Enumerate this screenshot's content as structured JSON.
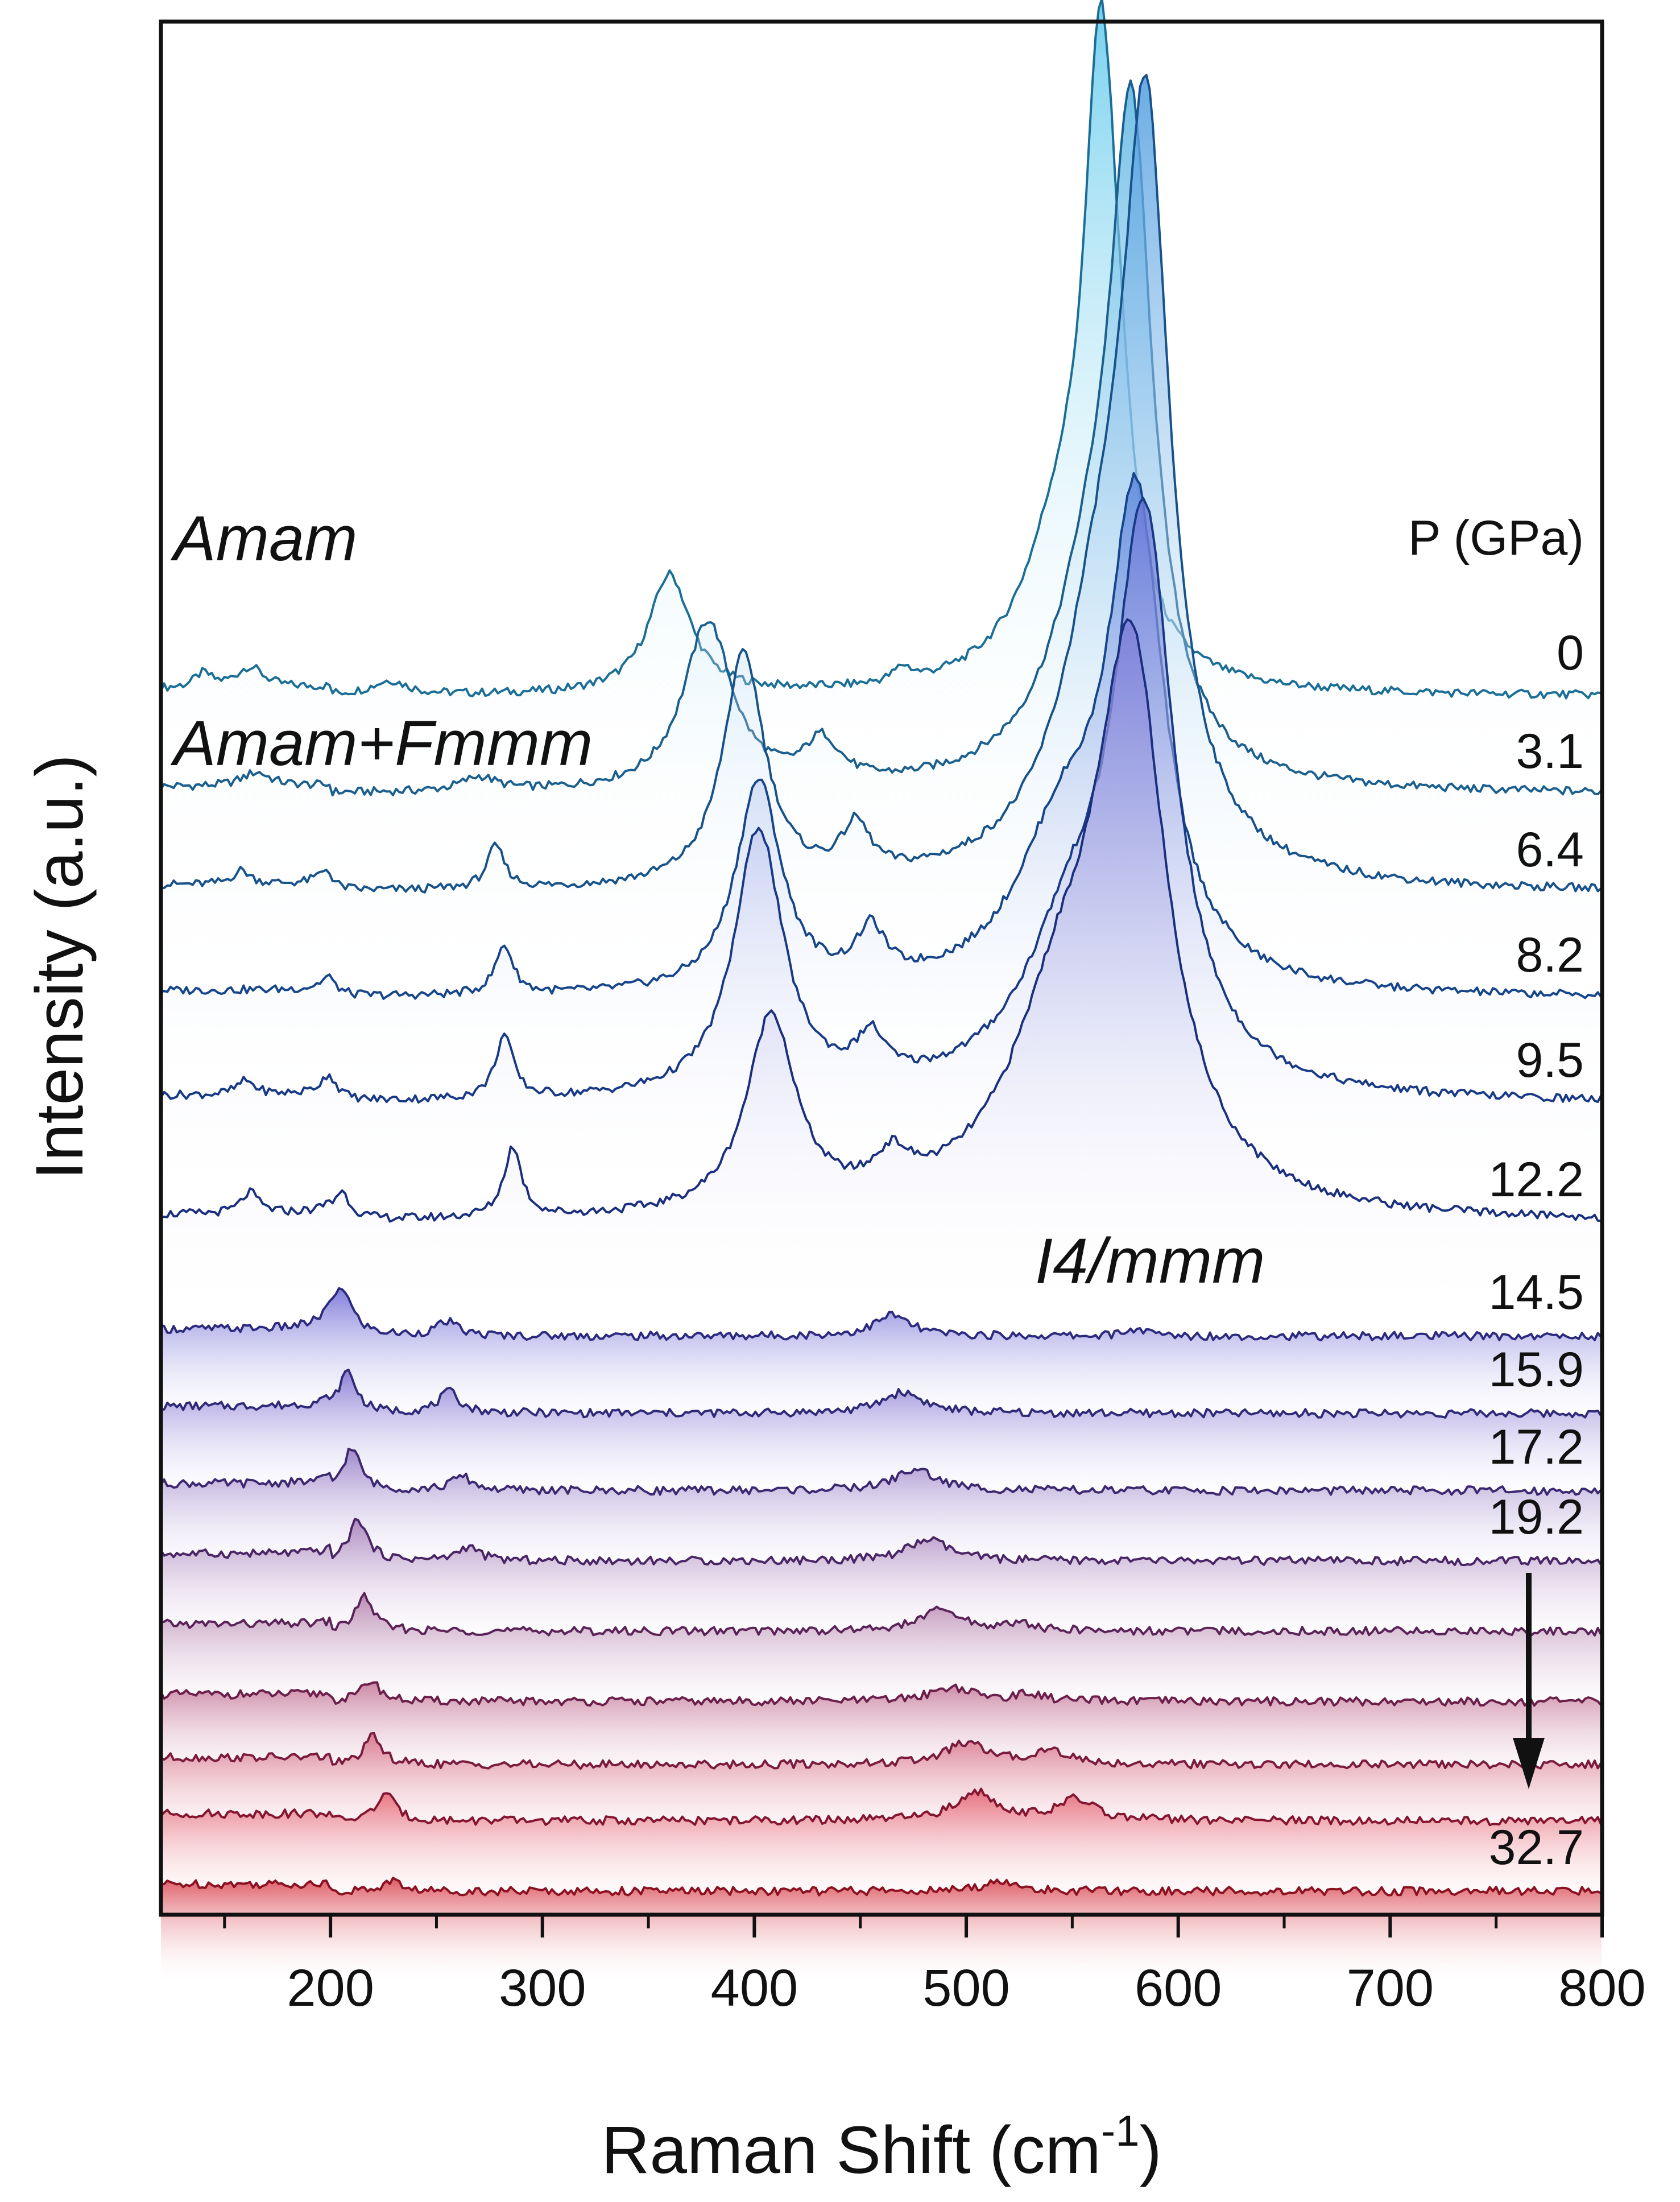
{
  "chart_data": {
    "type": "line",
    "title": "",
    "xlabel": "Raman Shift (cm",
    "xlabel_sup": "-1",
    "xlabel_close": ")",
    "ylabel": "Intensity (a.u.)",
    "xlim": [
      120,
      800
    ],
    "xticks": [
      200,
      300,
      400,
      500,
      600,
      700,
      800
    ],
    "xminor_ticks": [
      150,
      250,
      350,
      450,
      550,
      650,
      750
    ],
    "pressure_header": "P (GPa)",
    "phase_labels": [
      "Amam",
      "Amam+Fmmm",
      "I4/mmm"
    ],
    "colors": {
      "low_pressure": "#1c6a94",
      "mid_pressure": "#1f2f80",
      "high_pressure": "#8b1020"
    },
    "series": [
      {
        "name": "0",
        "label": "0",
        "baseline": 1.0,
        "color": "#1b6e96",
        "fill": "#5ec8ec",
        "peaks": [
          [
            140,
            0.02,
            5
          ],
          [
            162,
            0.03,
            8
          ],
          [
            228,
            0.02,
            10
          ],
          [
            360,
            0.17,
            12
          ],
          [
            470,
            0.02,
            5
          ],
          [
            545,
            0.2,
            22
          ],
          [
            563,
            0.72,
            9
          ],
          [
            570,
            0.22,
            10
          ]
        ]
      },
      {
        "name": "3.1",
        "label": "3.1",
        "baseline": 0.86,
        "color": "#1a5f8e",
        "fill": "#58b3e3",
        "peaks": [
          [
            165,
            0.02,
            8
          ],
          [
            270,
            0.02,
            10
          ],
          [
            378,
            0.24,
            14
          ],
          [
            432,
            0.06,
            10
          ],
          [
            578,
            0.85,
            12
          ],
          [
            560,
            0.25,
            24
          ]
        ]
      },
      {
        "name": "6.4",
        "label": "6.4",
        "baseline": 0.72,
        "color": "#17528a",
        "fill": "#4f9de0",
        "peaks": [
          [
            158,
            0.02,
            5
          ],
          [
            198,
            0.02,
            5
          ],
          [
            278,
            0.06,
            5
          ],
          [
            395,
            0.33,
            12
          ],
          [
            448,
            0.07,
            8
          ],
          [
            585,
            0.95,
            13
          ],
          [
            565,
            0.35,
            25
          ]
        ]
      },
      {
        "name": "8.2",
        "label": "8.2",
        "baseline": 0.57,
        "color": "#16458a",
        "fill": "#5b84dc",
        "peaks": [
          [
            200,
            0.02,
            5
          ],
          [
            282,
            0.07,
            5
          ],
          [
            402,
            0.3,
            13
          ],
          [
            455,
            0.07,
            8
          ],
          [
            580,
            0.67,
            16
          ],
          [
            545,
            0.2,
            26
          ]
        ]
      },
      {
        "name": "9.5",
        "label": "9.5",
        "baseline": 0.42,
        "color": "#183a86",
        "fill": "#6a79d8",
        "peaks": [
          [
            160,
            0.02,
            5
          ],
          [
            200,
            0.03,
            5
          ],
          [
            282,
            0.09,
            5
          ],
          [
            402,
            0.38,
            14
          ],
          [
            455,
            0.06,
            8
          ],
          [
            584,
            0.78,
            17
          ],
          [
            550,
            0.2,
            28
          ]
        ]
      },
      {
        "name": "12.2",
        "label": "12.2",
        "baseline": 0.25,
        "color": "#1a2f7e",
        "fill": "#7c7ed8",
        "peaks": [
          [
            162,
            0.03,
            5
          ],
          [
            205,
            0.04,
            5
          ],
          [
            286,
            0.1,
            5
          ],
          [
            408,
            0.28,
            14
          ],
          [
            465,
            0.05,
            10
          ],
          [
            578,
            0.74,
            20
          ],
          [
            545,
            0.25,
            30
          ]
        ]
      },
      {
        "name": "14.5",
        "label": "14.5",
        "baseline": 0.09,
        "color": "#2b2a7e",
        "fill": "#6b66d4",
        "peaks": [
          [
            205,
            0.07,
            6
          ],
          [
            255,
            0.02,
            6
          ],
          [
            465,
            0.03,
            10
          ],
          [
            580,
            0.01,
            6
          ]
        ]
      },
      {
        "name": "15.9",
        "label": "15.9",
        "baseline": -0.02,
        "color": "#2f2a78",
        "fill": "#7e6cd0",
        "peaks": [
          [
            208,
            0.06,
            5
          ],
          [
            256,
            0.03,
            6
          ],
          [
            470,
            0.03,
            12
          ]
        ]
      },
      {
        "name": "17.2",
        "label": "17.2",
        "baseline": -0.13,
        "color": "#3c2870",
        "fill": "#9178c4",
        "peaks": [
          [
            210,
            0.06,
            5
          ],
          [
            262,
            0.02,
            6
          ],
          [
            476,
            0.03,
            12
          ]
        ]
      },
      {
        "name": "19.2",
        "label": "19.2",
        "baseline": -0.23,
        "color": "#4a2566",
        "fill": "#a37ab8",
        "peaks": [
          [
            213,
            0.06,
            5
          ],
          [
            265,
            0.02,
            6
          ],
          [
            482,
            0.03,
            12
          ]
        ]
      },
      {
        "name": "",
        "label": "",
        "baseline": -0.33,
        "color": "#5a2258",
        "fill": "#b07aa8",
        "peaks": [
          [
            216,
            0.05,
            5
          ],
          [
            488,
            0.03,
            12
          ],
          [
            525,
            0.01,
            8
          ]
        ]
      },
      {
        "name": "",
        "label": "",
        "baseline": -0.43,
        "color": "#6b1e4a",
        "fill": "#c47496",
        "peaks": [
          [
            219,
            0.03,
            5
          ],
          [
            493,
            0.02,
            12
          ],
          [
            530,
            0.01,
            8
          ]
        ]
      },
      {
        "name": "",
        "label": "",
        "baseline": -0.52,
        "color": "#7a1a3c",
        "fill": "#d66a82",
        "peaks": [
          [
            220,
            0.04,
            5
          ],
          [
            500,
            0.03,
            12
          ],
          [
            540,
            0.02,
            10
          ]
        ]
      },
      {
        "name": "",
        "label": "",
        "baseline": -0.6,
        "color": "#841530",
        "fill": "#e45c6c",
        "peaks": [
          [
            226,
            0.04,
            5
          ],
          [
            505,
            0.04,
            12
          ],
          [
            552,
            0.03,
            10
          ]
        ]
      },
      {
        "name": "32.7",
        "label": "32.7",
        "baseline": -0.7,
        "color": "#8b1020",
        "fill": "#d8404c",
        "peaks": [
          [
            229,
            0.015,
            5
          ],
          [
            515,
            0.015,
            8
          ]
        ]
      }
    ]
  }
}
